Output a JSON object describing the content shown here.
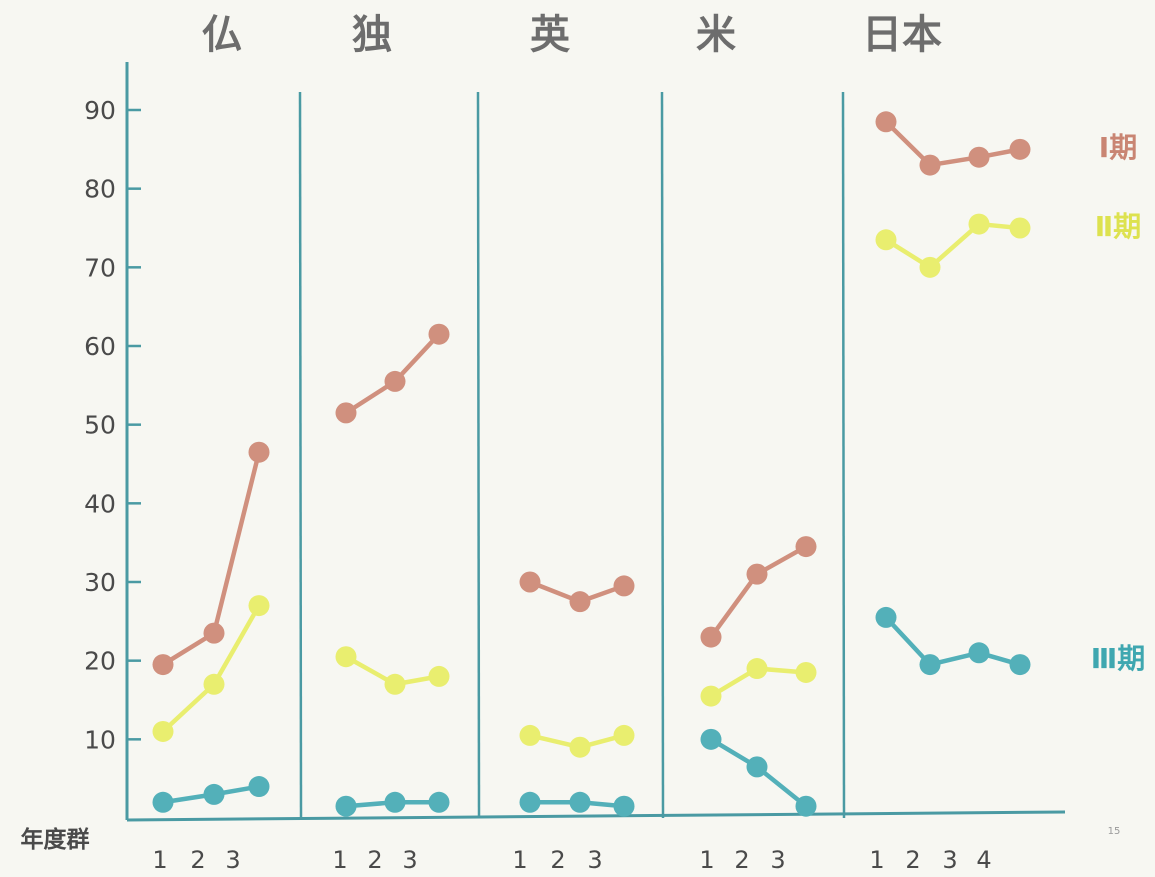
{
  "colors": {
    "axis": "#4a9aa3",
    "series_1": "#d0907e",
    "series_2": "#e9ee6f",
    "series_3": "#53b0b9",
    "text": "#4a4a4a"
  },
  "chart_data": {
    "type": "line",
    "panels": [
      "仏",
      "独",
      "英",
      "米",
      "日本"
    ],
    "y_ticks": [
      "90",
      "80",
      "70",
      "60",
      "50",
      "40",
      "30",
      "20",
      "10"
    ],
    "ylim": [
      0,
      90
    ],
    "x_axis_label": "年度群",
    "page_number": "15",
    "series_labels": [
      "Ⅰ期",
      "Ⅱ期",
      "Ⅲ期"
    ],
    "groups": [
      {
        "panel": "仏",
        "x": [
          "1",
          "2",
          "3"
        ],
        "series": [
          {
            "name": "Ⅰ期",
            "values": [
              19.5,
              23.5,
              46.5
            ]
          },
          {
            "name": "Ⅱ期",
            "values": [
              11,
              17,
              27
            ]
          },
          {
            "name": "Ⅲ期",
            "values": [
              2,
              3,
              4
            ]
          }
        ]
      },
      {
        "panel": "独",
        "x": [
          "1",
          "2",
          "3"
        ],
        "series": [
          {
            "name": "Ⅰ期",
            "values": [
              51.5,
              55.5,
              61.5
            ]
          },
          {
            "name": "Ⅱ期",
            "values": [
              20.5,
              17,
              18
            ]
          },
          {
            "name": "Ⅲ期",
            "values": [
              1.5,
              2,
              2
            ]
          }
        ]
      },
      {
        "panel": "英",
        "x": [
          "1",
          "2",
          "3"
        ],
        "series": [
          {
            "name": "Ⅰ期",
            "values": [
              30,
              27.5,
              29.5
            ]
          },
          {
            "name": "Ⅱ期",
            "values": [
              10.5,
              9,
              10.5
            ]
          },
          {
            "name": "Ⅲ期",
            "values": [
              2,
              2,
              1.5
            ]
          }
        ]
      },
      {
        "panel": "米",
        "x": [
          "1",
          "2",
          "3"
        ],
        "series": [
          {
            "name": "Ⅰ期",
            "values": [
              23,
              31,
              34.5
            ]
          },
          {
            "name": "Ⅱ期",
            "values": [
              15.5,
              19,
              18.5
            ]
          },
          {
            "name": "Ⅲ期",
            "values": [
              10,
              6.5,
              1.5
            ]
          }
        ]
      },
      {
        "panel": "日本",
        "x": [
          "1",
          "2",
          "3",
          "4"
        ],
        "series": [
          {
            "name": "Ⅰ期",
            "values": [
              88.5,
              83,
              84,
              85
            ]
          },
          {
            "name": "Ⅱ期",
            "values": [
              73.5,
              70,
              75.5,
              75
            ]
          },
          {
            "name": "Ⅲ期",
            "values": [
              25.5,
              19.5,
              21,
              19.5
            ]
          }
        ]
      }
    ]
  }
}
